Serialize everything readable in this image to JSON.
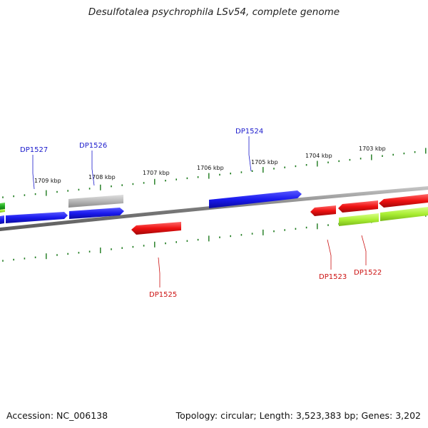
{
  "title": "Desulfotalea psychrophila LSv54, complete genome",
  "footer": {
    "accession": "Accession: NC_006138",
    "summary": "Topology: circular; Length: 3,523,383 bp; Genes: 3,202"
  },
  "colors": {
    "forward_gene": "#1a1aee",
    "reverse_gene": "#ee1111",
    "grey_gene": "#b0b0b0",
    "light_green_gene": "#aaee33",
    "dark_green_gene": "#22aa22",
    "tick": "#1c7a1c",
    "backbone": "#888888",
    "forward_label": "#1a1acc",
    "reverse_label": "#cc1111"
  },
  "kbp_labels": [
    "1709 kbp",
    "1708 kbp",
    "1707 kbp",
    "1706 kbp",
    "1705 kbp",
    "1704 kbp",
    "1703 kbp"
  ],
  "gene_labels": {
    "forward": [
      "DP1527",
      "DP1526",
      "DP1524"
    ],
    "reverse": [
      "DP1525",
      "DP1523",
      "DP1522"
    ]
  }
}
